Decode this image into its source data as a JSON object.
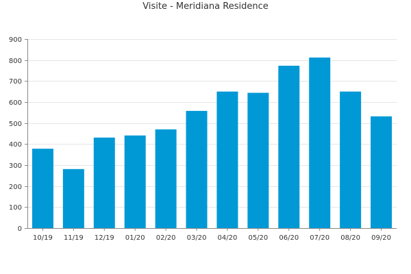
{
  "chart_data": {
    "type": "bar",
    "title": "Visite - Meridiana Residence",
    "xlabel": "",
    "ylabel": "",
    "categories": [
      "10/19",
      "11/19",
      "12/19",
      "01/20",
      "02/20",
      "03/20",
      "04/20",
      "05/20",
      "06/20",
      "07/20",
      "08/20",
      "09/20"
    ],
    "values": [
      378,
      281,
      431,
      441,
      470,
      558,
      650,
      644,
      773,
      812,
      650,
      532
    ],
    "ylim": [
      0,
      900
    ],
    "yticks": [
      0,
      100,
      200,
      300,
      400,
      500,
      600,
      700,
      800,
      900
    ],
    "grid": true,
    "legend": "none",
    "bar_color": "#0099d6",
    "grid_color": "#e5e5e5",
    "axis_color": "#888888"
  }
}
